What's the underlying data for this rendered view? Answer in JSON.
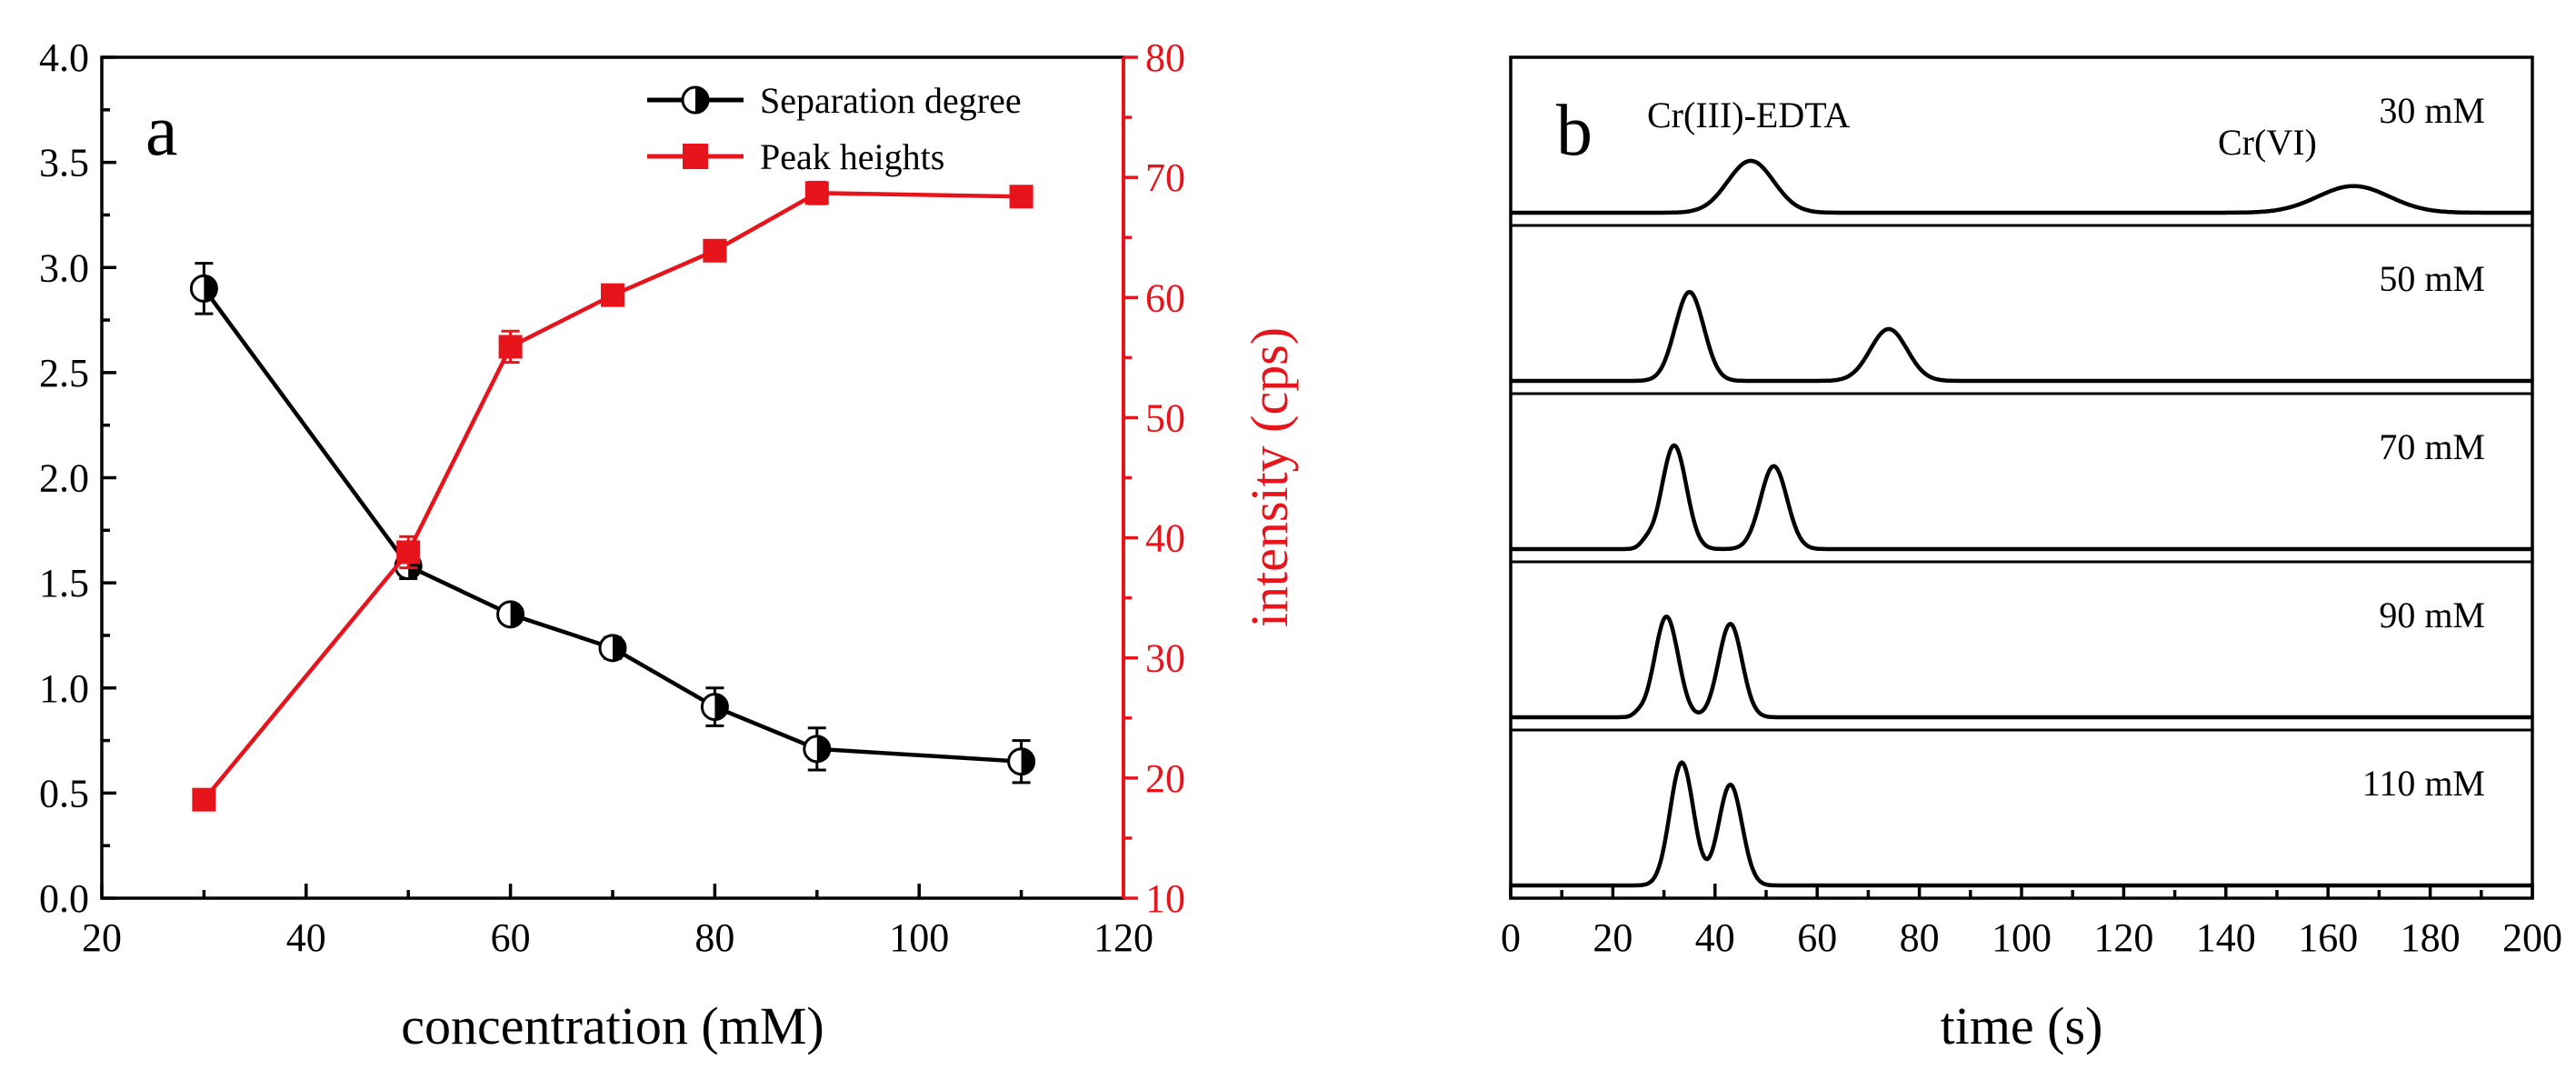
{
  "chart_data": [
    {
      "panel": "a",
      "type": "line",
      "xlabel": "concentration (mM)",
      "ylabel": "",
      "y2label": "intensity (cps)",
      "xlim": [
        20,
        120
      ],
      "ylim": [
        0.0,
        4.0
      ],
      "y2lim": [
        10,
        80
      ],
      "xticks": [
        "20",
        "40",
        "60",
        "80",
        "100",
        "120"
      ],
      "yticks": [
        "0.0",
        "0.5",
        "1.0",
        "1.5",
        "2.0",
        "2.5",
        "3.0",
        "3.5",
        "4.0"
      ],
      "y2ticks": [
        "10",
        "20",
        "30",
        "40",
        "50",
        "60",
        "70",
        "80"
      ],
      "series": [
        {
          "name": "Separation degree",
          "axis": "left",
          "color": "#000000",
          "marker": "half-filled-circle",
          "x": [
            30,
            50,
            60,
            70,
            80,
            90,
            110
          ],
          "y": [
            2.9,
            1.58,
            1.35,
            1.19,
            0.91,
            0.71,
            0.65
          ],
          "err": [
            0.12,
            0.06,
            0.04,
            0.05,
            0.09,
            0.1,
            0.1
          ]
        },
        {
          "name": "Peak heights",
          "axis": "right",
          "color": "#e8141b",
          "marker": "square",
          "x": [
            30,
            50,
            60,
            70,
            80,
            90,
            110
          ],
          "y": [
            18.2,
            38.8,
            55.9,
            60.2,
            63.9,
            68.7,
            68.4
          ],
          "err": [
            0.5,
            1.3,
            1.3,
            0.6,
            0.5,
            0.9,
            0.7
          ]
        }
      ]
    },
    {
      "panel": "b",
      "type": "line",
      "xlabel": "time (s)",
      "xlim": [
        0,
        200
      ],
      "xticks": [
        "0",
        "20",
        "40",
        "60",
        "80",
        "100",
        "120",
        "140",
        "160",
        "180",
        "200"
      ],
      "peak_labels": {
        "first": "Cr(III)-EDTA",
        "second": "Cr(VI)"
      },
      "traces": [
        {
          "label": "30 mM",
          "peaks": [
            {
              "t": 47,
              "height": 0.35,
              "width": 4.5
            },
            {
              "t": 165,
              "height": 0.18,
              "width": 7.0
            }
          ]
        },
        {
          "label": "50 mM",
          "peaks": [
            {
              "t": 35,
              "height": 0.6,
              "width": 2.8
            },
            {
              "t": 74,
              "height": 0.35,
              "width": 3.6
            }
          ]
        },
        {
          "label": "70 mM",
          "peaks": [
            {
              "t": 32,
              "height": 0.7,
              "width": 2.4
            },
            {
              "t": 51.5,
              "height": 0.56,
              "width": 2.6
            },
            {
              "t": 26.5,
              "height": 0.04,
              "width": 1.2
            }
          ]
        },
        {
          "label": "90 mM",
          "peaks": [
            {
              "t": 30.5,
              "height": 0.68,
              "width": 2.3
            },
            {
              "t": 43,
              "height": 0.63,
              "width": 2.3
            },
            {
              "t": 25,
              "height": 0.02,
              "width": 1.0
            }
          ]
        },
        {
          "label": "110 mM",
          "peaks": [
            {
              "t": 33.5,
              "height": 0.83,
              "width": 2.3
            },
            {
              "t": 43,
              "height": 0.68,
              "width": 2.3
            }
          ]
        }
      ]
    }
  ]
}
